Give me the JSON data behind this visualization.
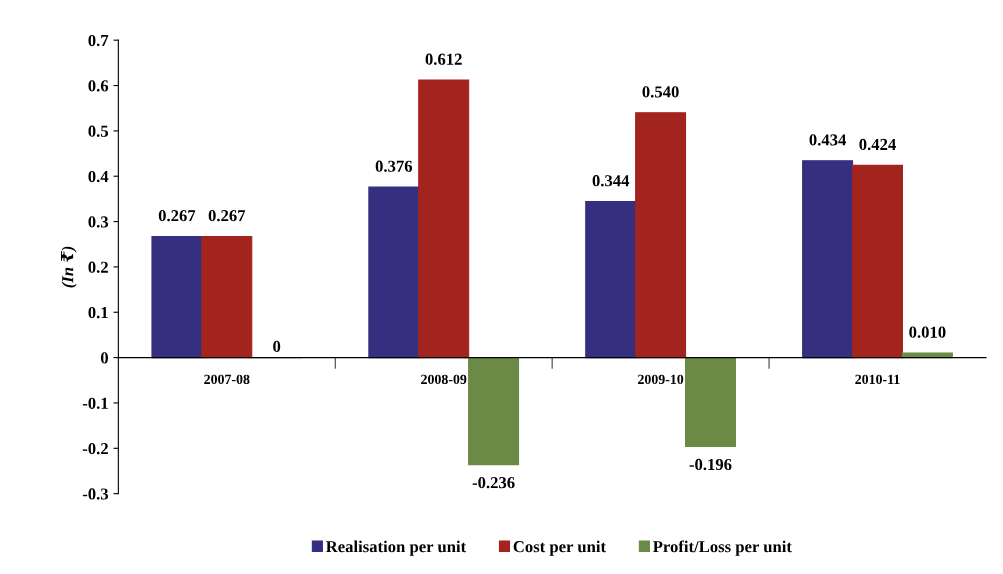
{
  "chart_data": {
    "type": "bar",
    "ylabel": "(In ₹)",
    "categories": [
      "2007-08",
      "2008-09",
      "2009-10",
      "2010-11"
    ],
    "series": [
      {
        "name": "Realisation per unit",
        "color": "#34307f",
        "values": [
          0.267,
          0.376,
          0.344,
          0.434
        ],
        "value_labels": [
          "0.267",
          "0.376",
          "0.344",
          "0.434"
        ]
      },
      {
        "name": "Cost per unit",
        "color": "#a3231f",
        "values": [
          0.267,
          0.612,
          0.54,
          0.424
        ],
        "value_labels": [
          "0.267",
          "0.612",
          "0.540",
          "0.424"
        ]
      },
      {
        "name": "Profit/Loss per unit",
        "color": "#6b8a45",
        "values": [
          0,
          -0.236,
          -0.196,
          0.01
        ],
        "value_labels": [
          "0",
          "-0.236",
          "-0.196",
          "0.010"
        ]
      }
    ],
    "ylim": [
      -0.3,
      0.7
    ],
    "yticks": [
      -0.3,
      -0.2,
      -0.1,
      0,
      0.1,
      0.2,
      0.3,
      0.4,
      0.5,
      0.6,
      0.7
    ],
    "grid": false,
    "legend": "bottom"
  }
}
